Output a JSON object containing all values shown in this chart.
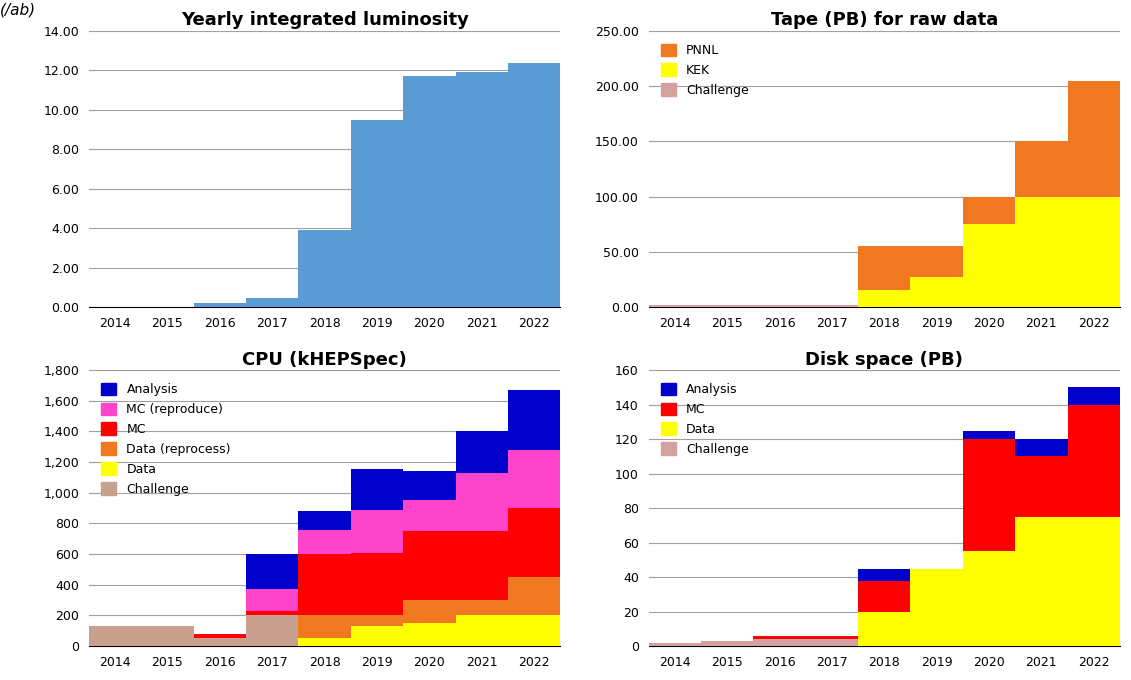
{
  "years": [
    2014,
    2015,
    2016,
    2017,
    2018,
    2019,
    2020,
    2021,
    2022
  ],
  "lumi": {
    "title": "Yearly integrated luminosity",
    "ylabel": "(/ab)",
    "values": [
      0,
      0,
      0.2,
      0.45,
      3.9,
      9.5,
      11.7,
      11.9,
      12.4
    ],
    "color": "#5b9bd5",
    "ylim": [
      0,
      14
    ],
    "yticks": [
      0,
      2,
      4,
      6,
      8,
      10,
      12,
      14
    ],
    "ytick_labels": [
      "0.00",
      "2.00",
      "4.00",
      "6.00",
      "8.00",
      "10.00",
      "12.00",
      "14.00"
    ]
  },
  "tape": {
    "title": "Tape (PB) for raw data",
    "ylim": [
      0,
      250
    ],
    "yticks": [
      0,
      50,
      100,
      150,
      200,
      250
    ],
    "ytick_labels": [
      "0.00",
      "50.00",
      "100.00",
      "150.00",
      "200.00",
      "250.00"
    ],
    "series": {
      "Challenge": {
        "color": "#d4a0a0",
        "values": [
          2,
          2,
          2,
          2,
          0,
          0,
          0,
          0,
          0
        ]
      },
      "KEK": {
        "color": "#ffff00",
        "values": [
          0,
          0,
          0,
          0,
          15,
          27,
          75,
          100,
          100
        ]
      },
      "PNNL": {
        "color": "#f07820",
        "values": [
          0,
          0,
          0,
          0,
          40,
          28,
          25,
          50,
          105
        ]
      }
    },
    "stack_order": [
      "Challenge",
      "KEK",
      "PNNL"
    ],
    "legend_order": [
      "PNNL",
      "KEK",
      "Challenge"
    ]
  },
  "cpu": {
    "title": "CPU (kHEPSpec)",
    "ylim": [
      0,
      1800
    ],
    "yticks": [
      0,
      200,
      400,
      600,
      800,
      1000,
      1200,
      1400,
      1600,
      1800
    ],
    "ytick_labels": [
      "0",
      "200",
      "400",
      "600",
      "800",
      "1,000",
      "1,200",
      "1,400",
      "1,600",
      "1,800"
    ],
    "series": {
      "Challenge": {
        "color": "#c9a090",
        "values": [
          130,
          130,
          50,
          200,
          0,
          0,
          0,
          0,
          0
        ]
      },
      "Data": {
        "color": "#ffff00",
        "values": [
          0,
          0,
          0,
          0,
          50,
          130,
          150,
          200,
          200
        ]
      },
      "Data (reprocess)": {
        "color": "#f07820",
        "values": [
          0,
          0,
          0,
          0,
          150,
          75,
          150,
          100,
          250
        ]
      },
      "MC": {
        "color": "#ff0000",
        "values": [
          0,
          0,
          30,
          30,
          400,
          400,
          450,
          450,
          450
        ]
      },
      "MC (reproduce)": {
        "color": "#ff44cc",
        "values": [
          0,
          0,
          0,
          140,
          160,
          280,
          200,
          380,
          380
        ]
      },
      "Analysis": {
        "color": "#0000cc",
        "values": [
          0,
          0,
          0,
          230,
          120,
          270,
          190,
          270,
          390
        ]
      }
    },
    "stack_order": [
      "Challenge",
      "Data",
      "Data (reprocess)",
      "MC",
      "MC (reproduce)",
      "Analysis"
    ],
    "legend_order": [
      "Analysis",
      "MC (reproduce)",
      "MC",
      "Data (reprocess)",
      "Data",
      "Challenge"
    ]
  },
  "disk": {
    "title": "Disk space (PB)",
    "ylim": [
      0,
      160
    ],
    "yticks": [
      0,
      20,
      40,
      60,
      80,
      100,
      120,
      140,
      160
    ],
    "ytick_labels": [
      "0",
      "20",
      "40",
      "60",
      "80",
      "100",
      "120",
      "140",
      "160"
    ],
    "series": {
      "Challenge": {
        "color": "#d4a0a0",
        "values": [
          2,
          3,
          4,
          4,
          0,
          0,
          0,
          0,
          0
        ]
      },
      "Data": {
        "color": "#ffff00",
        "values": [
          0,
          0,
          0,
          0,
          20,
          45,
          55,
          75,
          75
        ]
      },
      "MC": {
        "color": "#ff0000",
        "values": [
          0,
          0,
          2,
          2,
          18,
          0,
          65,
          35,
          65
        ]
      },
      "Analysis": {
        "color": "#0000cc",
        "values": [
          0,
          0,
          0,
          0,
          7,
          0,
          5,
          10,
          10
        ]
      }
    },
    "stack_order": [
      "Challenge",
      "Data",
      "MC",
      "Analysis"
    ],
    "legend_order": [
      "Analysis",
      "MC",
      "Data",
      "Challenge"
    ]
  },
  "bg_color": "#ffffff",
  "grid_color": "#a0a0a0",
  "title_font": "Comic Sans MS"
}
